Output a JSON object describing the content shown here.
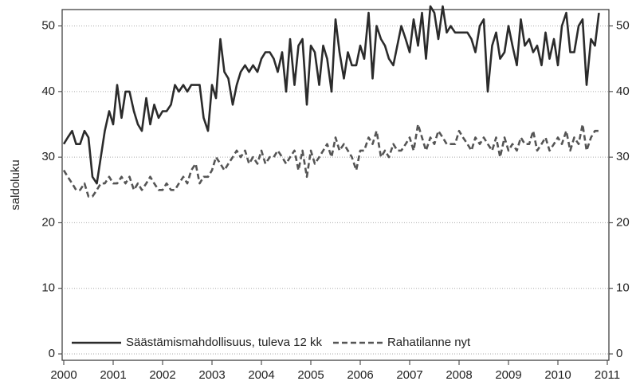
{
  "chart_data": {
    "type": "line",
    "y_label": "saldoluku",
    "x": [
      2000,
      2000.08,
      2000.17,
      2000.25,
      2000.33,
      2000.42,
      2000.5,
      2000.58,
      2000.67,
      2000.75,
      2000.83,
      2000.92,
      2001,
      2001.08,
      2001.17,
      2001.25,
      2001.33,
      2001.42,
      2001.5,
      2001.58,
      2001.67,
      2001.75,
      2001.83,
      2001.92,
      2002,
      2002.08,
      2002.17,
      2002.25,
      2002.33,
      2002.42,
      2002.5,
      2002.58,
      2002.67,
      2002.75,
      2002.83,
      2002.92,
      2003,
      2003.08,
      2003.17,
      2003.25,
      2003.33,
      2003.42,
      2003.5,
      2003.58,
      2003.67,
      2003.75,
      2003.83,
      2003.92,
      2004,
      2004.08,
      2004.17,
      2004.25,
      2004.33,
      2004.42,
      2004.5,
      2004.58,
      2004.67,
      2004.75,
      2004.83,
      2004.92,
      2005,
      2005.08,
      2005.17,
      2005.25,
      2005.33,
      2005.42,
      2005.5,
      2005.58,
      2005.67,
      2005.75,
      2005.83,
      2005.92,
      2006,
      2006.08,
      2006.17,
      2006.25,
      2006.33,
      2006.42,
      2006.5,
      2006.58,
      2006.67,
      2006.75,
      2006.83,
      2006.92,
      2007,
      2007.08,
      2007.17,
      2007.25,
      2007.33,
      2007.42,
      2007.5,
      2007.58,
      2007.67,
      2007.75,
      2007.83,
      2007.92,
      2008,
      2008.08,
      2008.17,
      2008.25,
      2008.33,
      2008.42,
      2008.5,
      2008.58,
      2008.67,
      2008.75,
      2008.83,
      2008.92,
      2009,
      2009.08,
      2009.17,
      2009.25,
      2009.33,
      2009.42,
      2009.5,
      2009.58,
      2009.67,
      2009.75,
      2009.83,
      2009.92,
      2010,
      2010.08,
      2010.17,
      2010.25,
      2010.33,
      2010.42,
      2010.5,
      2010.58,
      2010.67,
      2010.75,
      2010.83
    ],
    "series": [
      {
        "name": "Säästämismahdollisuus, tuleva 12 kk",
        "color": "#2b2b2b",
        "dashed": false,
        "values": [
          32,
          33,
          34,
          32,
          32,
          34,
          33,
          27,
          26,
          30,
          34,
          37,
          35,
          41,
          36,
          40,
          40,
          37,
          35,
          34,
          39,
          35,
          38,
          36,
          37,
          37,
          38,
          41,
          40,
          41,
          40,
          41,
          41,
          41,
          36,
          34,
          41,
          39,
          48,
          43,
          42,
          38,
          41,
          43,
          44,
          43,
          44,
          43,
          45,
          46,
          46,
          45,
          43,
          46,
          40,
          48,
          41,
          47,
          48,
          38,
          47,
          46,
          41,
          47,
          45,
          40,
          51,
          46,
          42,
          46,
          44,
          44,
          47,
          45,
          52,
          42,
          50,
          48,
          47,
          45,
          44,
          47,
          50,
          48,
          46,
          51,
          47,
          52,
          45,
          53,
          52,
          48,
          53,
          49,
          50,
          49,
          49,
          49,
          49,
          48,
          46,
          50,
          51,
          40,
          47,
          49,
          45,
          46,
          50,
          47,
          44,
          51,
          47,
          48,
          46,
          47,
          44,
          49,
          45,
          48,
          44,
          50,
          52,
          46,
          46,
          50,
          51,
          41,
          48,
          47,
          52
        ]
      },
      {
        "name": "Rahatilanne nyt",
        "color": "#555555",
        "dashed": true,
        "values": [
          28,
          27,
          26,
          25,
          25,
          26,
          24,
          24,
          25,
          26,
          26,
          27,
          26,
          26,
          27,
          26,
          27,
          25,
          26,
          25,
          26,
          27,
          26,
          25,
          25,
          26,
          25,
          25,
          26,
          27,
          26,
          28,
          29,
          26,
          27,
          27,
          28,
          30,
          29,
          28,
          29,
          30,
          31,
          30,
          31,
          29,
          30,
          29,
          31,
          29,
          30,
          30,
          31,
          30,
          29,
          30,
          31,
          28,
          31,
          27,
          31,
          29,
          30,
          31,
          32,
          30,
          33,
          31,
          32,
          31,
          30,
          28,
          31,
          31,
          33,
          32,
          34,
          30,
          31,
          30,
          32,
          31,
          31,
          32,
          33,
          31,
          35,
          33,
          31,
          33,
          32,
          34,
          33,
          32,
          32,
          32,
          34,
          33,
          32,
          31,
          33,
          32,
          33,
          32,
          31,
          33,
          30,
          33,
          31,
          32,
          31,
          33,
          32,
          32,
          34,
          31,
          32,
          33,
          31,
          32,
          33,
          32,
          34,
          31,
          33,
          32,
          35,
          31,
          33,
          34,
          34
        ]
      }
    ],
    "xlim": [
      2000,
      2011
    ],
    "xticks": [
      2000,
      2001,
      2002,
      2003,
      2004,
      2005,
      2006,
      2007,
      2008,
      2009,
      2010,
      2011
    ],
    "ylim": [
      0,
      52.5
    ],
    "yticks": [
      0,
      10,
      20,
      30,
      40,
      50
    ],
    "grid": true,
    "legend": "bottom-left"
  }
}
